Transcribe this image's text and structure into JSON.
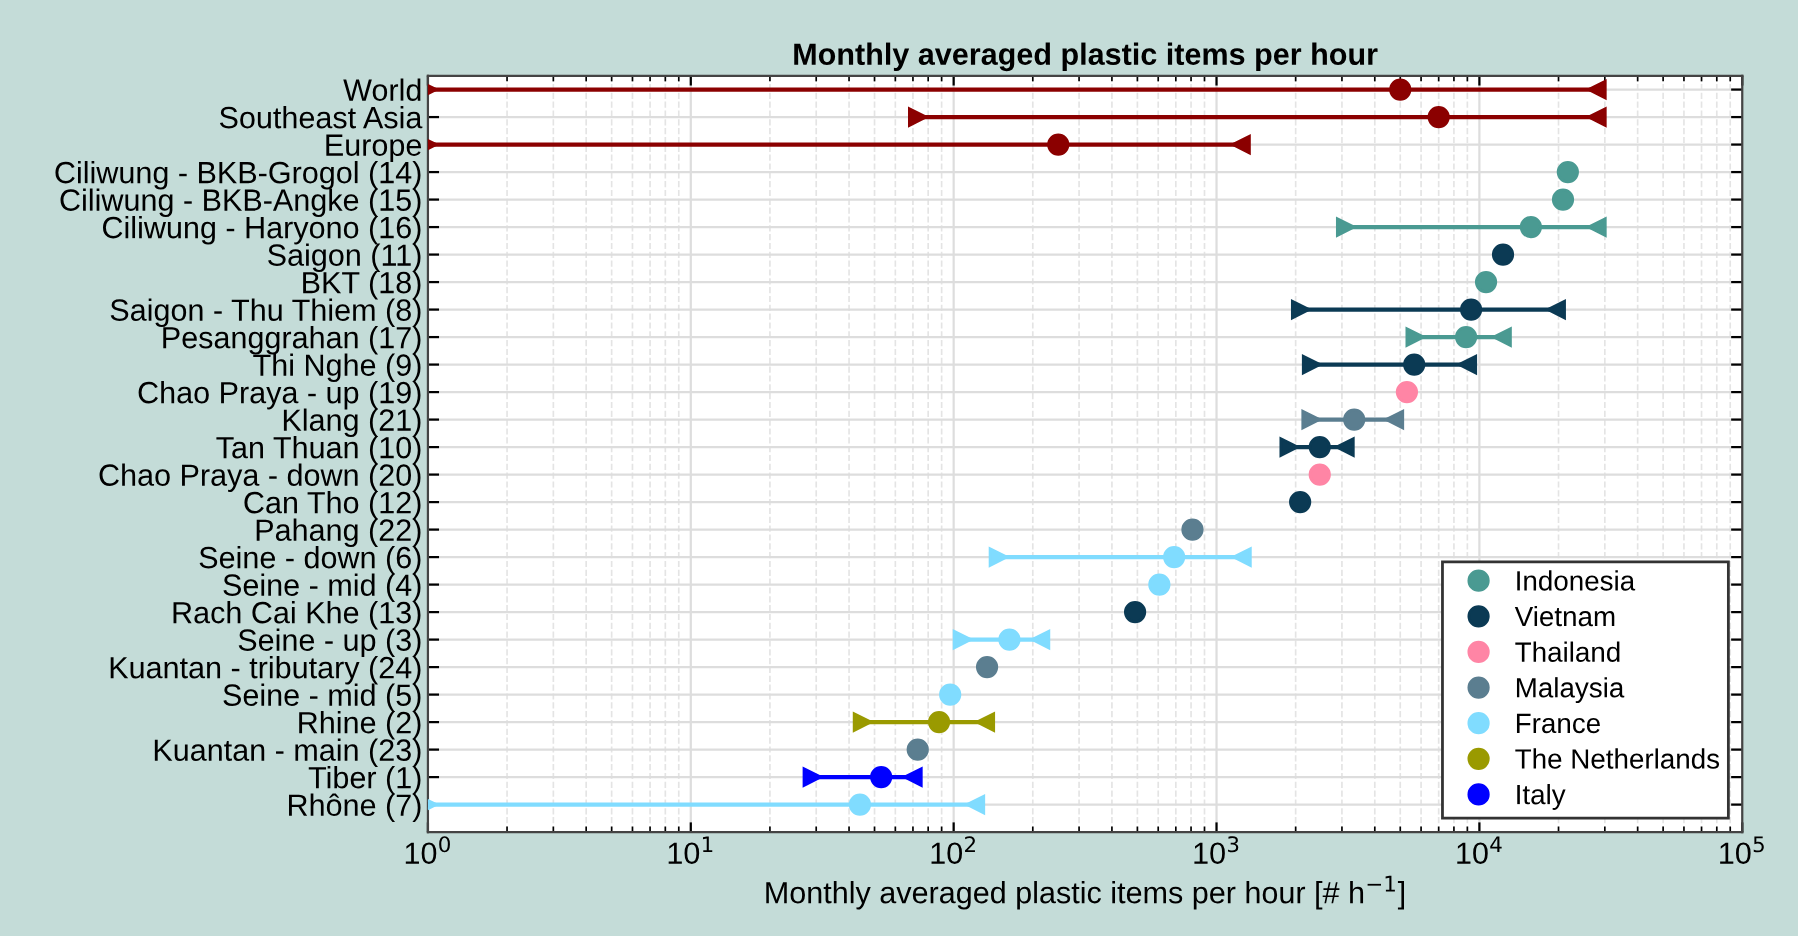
{
  "chart_data": {
    "type": "scatter",
    "orientation": "horizontal",
    "title": "Monthly averaged plastic items per hour",
    "xlabel": "Monthly averaged plastic items per hour [# h$^{−1}$]",
    "categories": [
      "World",
      "Southeast Asia",
      "Europe",
      "Ciliwung - BKB-Grogol (14)",
      "Ciliwung - BKB-Angke (15)",
      "Ciliwung - Haryono (16)",
      "Saigon (11)",
      "BKT (18)",
      "Saigon - Thu Thiem (8)",
      "Pesanggrahan (17)",
      "Thi Nghe (9)",
      "Chao Praya - up (19)",
      "Klang (21)",
      "Tan Thuan (10)",
      "Chao Praya - down (20)",
      "Can Tho (12)",
      "Pahang (22)",
      "Seine - down (6)",
      "Seine - mid (4)",
      "Rach Cai Khe (13)",
      "Seine - up (3)",
      "Kuantan - tributary (24)",
      "Seine - mid (5)",
      "Rhine (2)",
      "Kuantan - main (23)",
      "Tiber (1)",
      "Rhône (7)"
    ],
    "series": [
      {
        "color": "#8b0000",
        "values": [
          5000,
          7000,
          250,
          null,
          null,
          null,
          null,
          null,
          null,
          null,
          null,
          null,
          null,
          null,
          null,
          null,
          null,
          null,
          null,
          null,
          null,
          null,
          null,
          null,
          null,
          null,
          null
        ],
        "errors": [
          [
            1,
            28000
          ],
          [
            73,
            28000
          ],
          [
            1,
            1240
          ],
          null,
          null,
          null,
          null,
          null,
          null,
          null,
          null,
          null,
          null,
          null,
          null,
          null,
          null,
          null,
          null,
          null,
          null,
          null,
          null,
          null,
          null,
          null,
          null
        ]
      },
      {
        "name": "Indonesia",
        "color": "#4a9a92",
        "values": [
          null,
          null,
          null,
          21700,
          20800,
          15700,
          null,
          10600,
          null,
          8900,
          null,
          null,
          null,
          null,
          null,
          null,
          null,
          null,
          null,
          null,
          null,
          null,
          null,
          null,
          null,
          null,
          null
        ],
        "errors": [
          null,
          null,
          null,
          null,
          null,
          [
            3100,
            28000
          ],
          null,
          null,
          null,
          [
            5700,
            12200
          ],
          null,
          null,
          null,
          null,
          null,
          null,
          null,
          null,
          null,
          null,
          null,
          null,
          null,
          null,
          null,
          null,
          null
        ]
      },
      {
        "name": "Vietnam",
        "color": "#0b3a54",
        "values": [
          null,
          null,
          null,
          null,
          null,
          null,
          12300,
          null,
          9300,
          null,
          5650,
          null,
          null,
          2470,
          null,
          2080,
          null,
          null,
          null,
          490,
          null,
          null,
          null,
          null,
          null,
          null,
          null
        ],
        "errors": [
          null,
          null,
          null,
          null,
          null,
          null,
          null,
          null,
          [
            2090,
            19600
          ],
          null,
          [
            2300,
            9000
          ],
          null,
          null,
          [
            1890,
            3080
          ],
          null,
          null,
          null,
          null,
          null,
          null,
          null,
          null,
          null,
          null,
          null,
          null,
          null
        ]
      },
      {
        "name": "Thailand",
        "color": "#ff85a5",
        "values": [
          null,
          null,
          null,
          null,
          null,
          null,
          null,
          null,
          null,
          null,
          null,
          5300,
          null,
          null,
          2470,
          null,
          null,
          null,
          null,
          null,
          null,
          null,
          null,
          null,
          null,
          null,
          null
        ]
      },
      {
        "name": "Malaysia",
        "color": "#5b7e90",
        "values": [
          null,
          null,
          null,
          null,
          null,
          null,
          null,
          null,
          null,
          null,
          null,
          null,
          3340,
          null,
          null,
          null,
          810,
          null,
          null,
          null,
          null,
          134,
          null,
          null,
          73,
          null,
          null
        ],
        "errors": [
          null,
          null,
          null,
          null,
          null,
          null,
          null,
          null,
          null,
          null,
          null,
          null,
          [
            2290,
            4750
          ],
          null,
          null,
          null,
          null,
          null,
          null,
          null,
          null,
          null,
          null,
          null,
          null,
          null,
          null
        ]
      },
      {
        "name": "France",
        "color": "#80dcff",
        "values": [
          null,
          null,
          null,
          null,
          null,
          null,
          null,
          null,
          null,
          null,
          null,
          null,
          null,
          null,
          null,
          null,
          null,
          690,
          606,
          null,
          163,
          null,
          97,
          null,
          null,
          null,
          44
        ],
        "errors": [
          null,
          null,
          null,
          null,
          null,
          null,
          null,
          null,
          null,
          null,
          null,
          null,
          null,
          null,
          null,
          null,
          null,
          [
            148,
            1250
          ],
          null,
          null,
          [
            108,
            214
          ],
          null,
          null,
          null,
          null,
          null,
          [
            1,
            121
          ]
        ]
      },
      {
        "name": "The Netherlands",
        "color": "#9a9a00",
        "values": [
          null,
          null,
          null,
          null,
          null,
          null,
          null,
          null,
          null,
          null,
          null,
          null,
          null,
          null,
          null,
          null,
          null,
          null,
          null,
          null,
          null,
          null,
          null,
          88,
          null,
          null,
          null
        ],
        "errors": [
          null,
          null,
          null,
          null,
          null,
          null,
          null,
          null,
          null,
          null,
          null,
          null,
          null,
          null,
          null,
          null,
          null,
          null,
          null,
          null,
          null,
          null,
          null,
          [
            45,
            132
          ],
          null,
          null,
          null
        ]
      },
      {
        "name": "Italy",
        "color": "#0000ff",
        "values": [
          null,
          null,
          null,
          null,
          null,
          null,
          null,
          null,
          null,
          null,
          null,
          null,
          null,
          null,
          null,
          null,
          null,
          null,
          null,
          null,
          null,
          null,
          null,
          null,
          null,
          53,
          null
        ],
        "errors": [
          null,
          null,
          null,
          null,
          null,
          null,
          null,
          null,
          null,
          null,
          null,
          null,
          null,
          null,
          null,
          null,
          null,
          null,
          null,
          null,
          null,
          null,
          null,
          null,
          null,
          [
            29,
            70
          ],
          null
        ]
      }
    ],
    "log": "x",
    "xlim": [
      1,
      100000
    ],
    "xticks": [
      {
        "value": 1,
        "label": "10$^{0}$"
      },
      {
        "value": 10,
        "label": "10$^{1}$"
      },
      {
        "value": 100,
        "label": "10$^{2}$"
      },
      {
        "value": 1000,
        "label": "10$^{3}$"
      },
      {
        "value": 10000,
        "label": "10$^{4}$"
      },
      {
        "value": 100000,
        "label": "10$^{5}$"
      }
    ],
    "grid": true,
    "legend": "bottom right",
    "marker": "circle"
  }
}
